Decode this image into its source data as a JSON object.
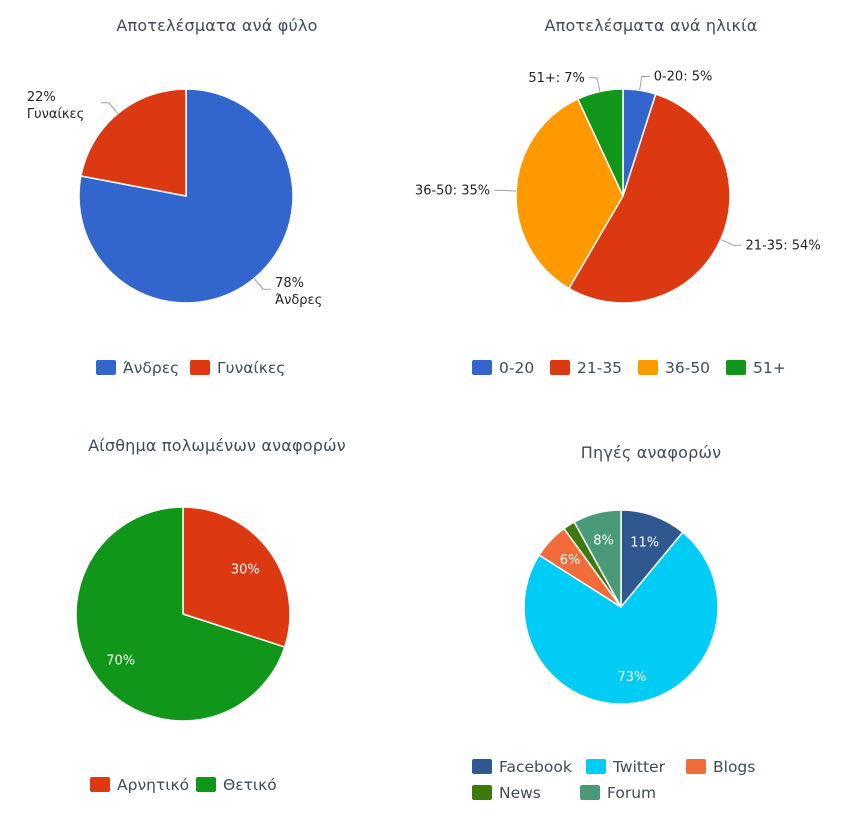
{
  "chart_data": [
    {
      "type": "pie",
      "title": "Αποτελέσματα ανά φύλο",
      "slices": [
        {
          "name": "Άνδρες",
          "value": 78,
          "label": "78%",
          "label2": "Άνδρες",
          "color": "#3366cc"
        },
        {
          "name": "Γυναίκες",
          "value": 22,
          "label": "22%",
          "label2": "Γυναίκες",
          "color": "#dc3912"
        }
      ],
      "legend": [
        "Άνδρες",
        "Γυναίκες"
      ],
      "label_style": "outside-two-line",
      "legend_position": "bottom"
    },
    {
      "type": "pie",
      "title": "Αποτελέσματα ανά ηλικία",
      "slices": [
        {
          "name": "0-20",
          "value": 5,
          "label": "0-20: 5%",
          "color": "#3366cc"
        },
        {
          "name": "21-35",
          "value": 54,
          "label": "21-35: 54%",
          "color": "#dc3912"
        },
        {
          "name": "36-50",
          "value": 35,
          "label": "36-50: 35%",
          "color": "#ff9900"
        },
        {
          "name": "51+",
          "value": 7,
          "label": "51+: 7%",
          "color": "#109618"
        }
      ],
      "legend": [
        "0-20",
        "21-35",
        "36-50",
        "51+"
      ],
      "label_style": "outside",
      "legend_position": "bottom"
    },
    {
      "type": "pie",
      "title": "Αίσθημα πολωμένων αναφορών",
      "slices": [
        {
          "name": "Αρνητικό",
          "value": 30,
          "label": "30%",
          "color": "#dc3912"
        },
        {
          "name": "Θετικό",
          "value": 70,
          "label": "70%",
          "color": "#109618"
        }
      ],
      "legend": [
        "Αρνητικό",
        "Θετικό"
      ],
      "label_style": "inside",
      "legend_position": "bottom"
    },
    {
      "type": "pie",
      "title": "Πηγές αναφορών",
      "slices": [
        {
          "name": "Facebook",
          "value": 11,
          "label": "11%",
          "color": "#2f5891"
        },
        {
          "name": "Twitter",
          "value": 73,
          "label": "73%",
          "color": "#00ccf5"
        },
        {
          "name": "Blogs",
          "value": 6,
          "label": "6%",
          "color": "#f26b3a"
        },
        {
          "name": "News",
          "value": 2,
          "label": "",
          "color": "#3d7a0d"
        },
        {
          "name": "Forum",
          "value": 8,
          "label": "8%",
          "color": "#4a9a7a"
        }
      ],
      "legend": [
        "Facebook",
        "Twitter",
        "Blogs",
        "News",
        "Forum"
      ],
      "label_style": "inside",
      "legend_position": "bottom"
    }
  ]
}
